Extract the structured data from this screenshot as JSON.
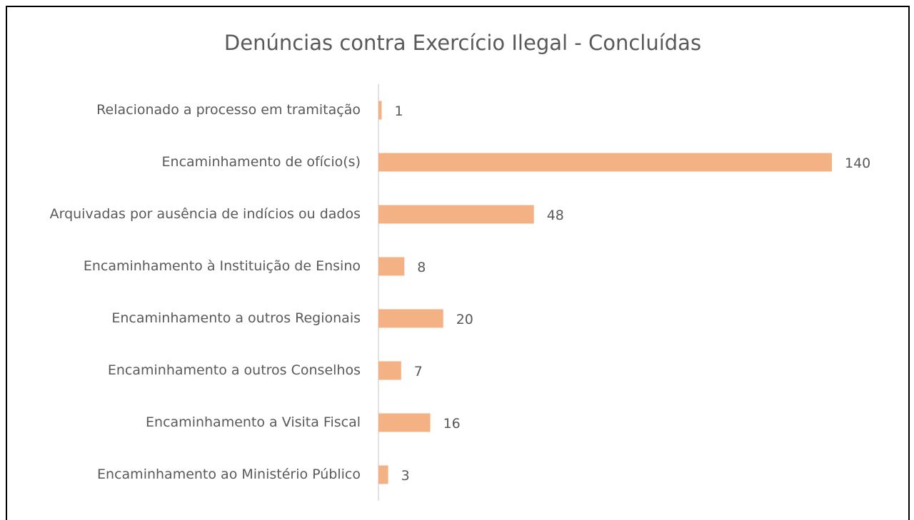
{
  "chart_data": {
    "type": "bar",
    "orientation": "horizontal",
    "title": "Denúncias contra Exercício Ilegal - Concluídas",
    "categories": [
      "Relacionado a processo em tramitação",
      "Encaminhamento de ofício(s)",
      "Arquivadas por ausência de indícios ou dados",
      "Encaminhamento à Instituição de Ensino",
      "Encaminhamento a outros Regionais",
      "Encaminhamento a outros Conselhos",
      "Encaminhamento a Visita Fiscal",
      "Encaminhamento ao Ministério Público"
    ],
    "values": [
      1,
      140,
      48,
      8,
      20,
      7,
      16,
      3
    ],
    "color": "#f4b183"
  }
}
